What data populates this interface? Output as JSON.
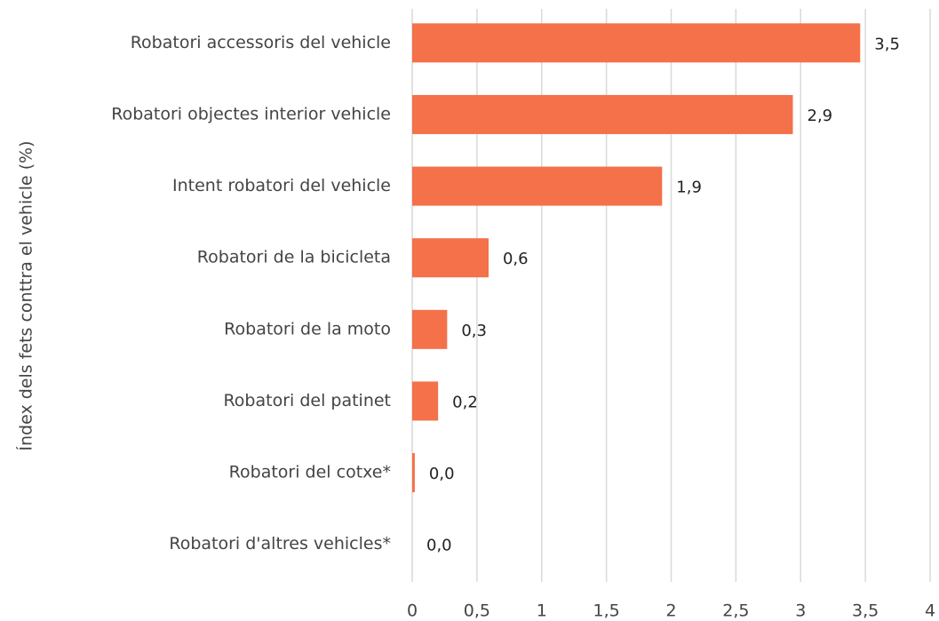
{
  "chart_data": {
    "type": "barh",
    "y_axis_label": "Índex dels fets conttra el vehicle (%)",
    "categories": [
      "Robatori accessoris del vehicle",
      "Robatori objectes interior vehicle",
      "Intent robatori del vehicle",
      "Robatori de la bicicleta",
      "Robatori de la moto",
      "Robatori del patinet",
      "Robatori del cotxe*",
      "Robatori d'altres vehicles*"
    ],
    "values": [
      3.46,
      2.94,
      1.93,
      0.59,
      0.27,
      0.2,
      0.02,
      0.0
    ],
    "value_labels": [
      "3,5",
      "2,9",
      "1,9",
      "0,6",
      "0,3",
      "0,2",
      "0,0",
      "0,0"
    ],
    "color": "#f4714a",
    "xlim": [
      0,
      4
    ],
    "xticks": [
      0,
      {
        "value": 0.5,
        "label": "0,5"
      },
      1,
      {
        "value": 1.5,
        "label": "1,5"
      },
      2,
      {
        "value": 2.5,
        "label": "2,5"
      },
      3,
      {
        "value": 3.5,
        "label": "3,5"
      },
      4
    ],
    "grid": true
  }
}
